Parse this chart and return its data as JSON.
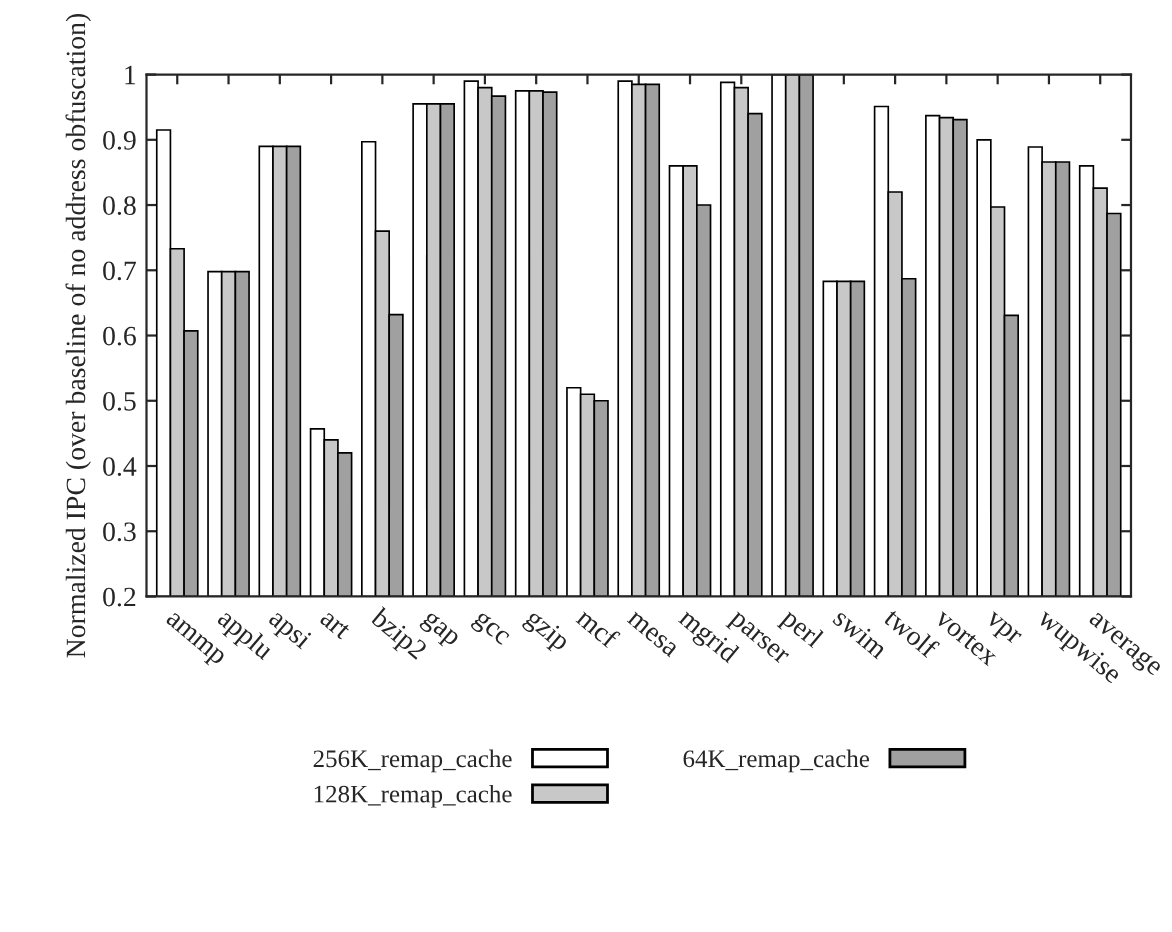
{
  "chart_data": {
    "type": "bar",
    "ylabel": "Normalized IPC (over baseline of no address obfuscation)",
    "categories": [
      "ammp",
      "applu",
      "apsi",
      "art",
      "bzip2",
      "gap",
      "gcc",
      "gzip",
      "mcf",
      "mesa",
      "mgrid",
      "parser",
      "perl",
      "swim",
      "twolf",
      "vortex",
      "vpr",
      "wupwise",
      "average"
    ],
    "series": [
      {
        "name": "256K_remap_cache",
        "color": "#ffffff",
        "values": [
          0.915,
          0.698,
          0.89,
          0.457,
          0.897,
          0.955,
          0.99,
          0.975,
          0.52,
          0.99,
          0.86,
          0.988,
          1.0,
          0.683,
          0.951,
          0.937,
          0.9,
          0.889,
          0.86
        ]
      },
      {
        "name": "128K_remap_cache",
        "color": "#c8c8c8",
        "values": [
          0.733,
          0.698,
          0.89,
          0.44,
          0.76,
          0.955,
          0.98,
          0.975,
          0.51,
          0.985,
          0.86,
          0.98,
          1.0,
          0.683,
          0.82,
          0.934,
          0.797,
          0.866,
          0.826
        ]
      },
      {
        "name": "64K_remap_cache",
        "color": "#a0a0a0",
        "values": [
          0.607,
          0.698,
          0.89,
          0.42,
          0.632,
          0.955,
          0.967,
          0.973,
          0.5,
          0.985,
          0.8,
          0.94,
          1.0,
          0.683,
          0.687,
          0.931,
          0.631,
          0.866,
          0.787
        ]
      }
    ],
    "ylim": [
      0.2,
      1
    ],
    "yticks": [
      0.2,
      0.3,
      0.4,
      0.5,
      0.6,
      0.7,
      0.8,
      0.9,
      1
    ],
    "grid": false,
    "legend": "bottom"
  }
}
